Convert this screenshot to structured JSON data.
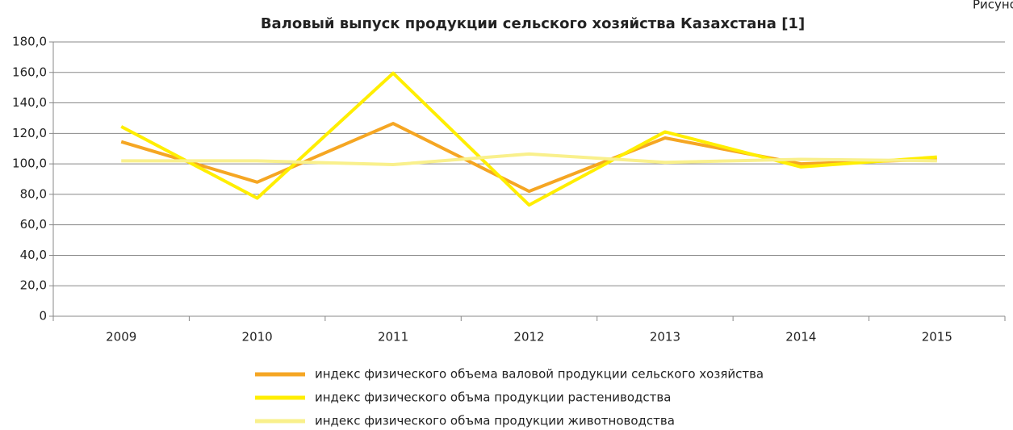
{
  "chart_data": {
    "type": "line",
    "title": "Валовый выпуск продукции сельского хозяйства Казахстана [1]",
    "annotation": "Рисунок",
    "categories": [
      "2009",
      "2010",
      "2011",
      "2012",
      "2013",
      "2014",
      "2015"
    ],
    "series": [
      {
        "name": "индекс физического объема валовой продукции сельского хозяйства",
        "color": "#f5a623",
        "values": [
          114.5,
          88,
          126.5,
          82,
          117,
          100,
          103
        ]
      },
      {
        "name": "индекс физического объма продукции растениводства",
        "color": "#ffee00",
        "values": [
          124.5,
          77.5,
          159.5,
          73,
          121,
          98,
          104.5
        ]
      },
      {
        "name": "индекс физического объма продукции животноводства",
        "color": "#f9f08c",
        "values": [
          102,
          102,
          99.5,
          106.5,
          101,
          103,
          102
        ]
      }
    ],
    "ylim": [
      0,
      180
    ],
    "yticks": [
      0,
      {
        "value": 20,
        "label": "20,0"
      },
      {
        "value": 40,
        "label": "40,0"
      },
      {
        "value": 60,
        "label": "60,0"
      },
      {
        "value": 80,
        "label": "80,0"
      },
      {
        "value": 100,
        "label": "100,0"
      },
      {
        "value": 120,
        "label": "120,0"
      },
      {
        "value": 140,
        "label": "140,0"
      },
      {
        "value": 160,
        "label": "160,0"
      },
      {
        "value": 180,
        "label": "180,0"
      }
    ],
    "grid": true,
    "legend": "bottom"
  }
}
